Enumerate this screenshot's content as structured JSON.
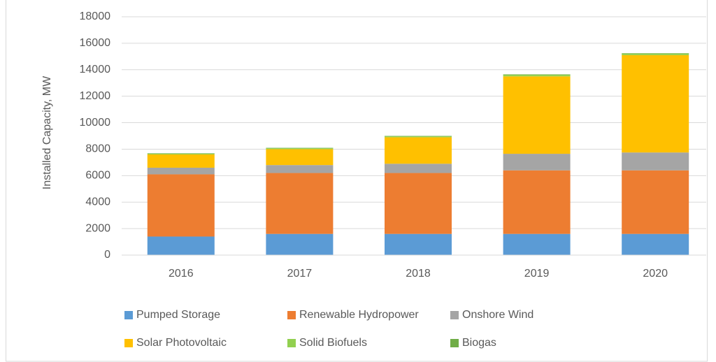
{
  "chart_data": {
    "type": "bar",
    "stacked": true,
    "y_label": "Installed Capacity, MW",
    "categories": [
      "2016",
      "2017",
      "2018",
      "2019",
      "2020"
    ],
    "series": [
      {
        "name": "Pumped Storage",
        "color": "#5b9bd5",
        "values": [
          1400,
          1600,
          1600,
          1600,
          1600
        ]
      },
      {
        "name": "Renewable Hydropower",
        "color": "#ed7d31",
        "values": [
          4700,
          4600,
          4600,
          4800,
          4800
        ]
      },
      {
        "name": "Onshore Wind",
        "color": "#a5a5a5",
        "values": [
          500,
          600,
          700,
          1250,
          1350
        ]
      },
      {
        "name": "Solar Photovoltaic",
        "color": "#ffc000",
        "values": [
          1000,
          1200,
          2000,
          5850,
          7350
        ]
      },
      {
        "name": "Solid Biofuels",
        "color": "#92d050",
        "values": [
          60,
          70,
          70,
          120,
          120
        ]
      },
      {
        "name": "Biogas",
        "color": "#70ad47",
        "values": [
          30,
          30,
          30,
          30,
          30
        ]
      }
    ],
    "ylim": [
      0,
      18000
    ],
    "yticks": [
      0,
      2000,
      4000,
      6000,
      8000,
      10000,
      12000,
      14000,
      16000,
      18000
    ],
    "grid": true,
    "legend": "bottom"
  }
}
